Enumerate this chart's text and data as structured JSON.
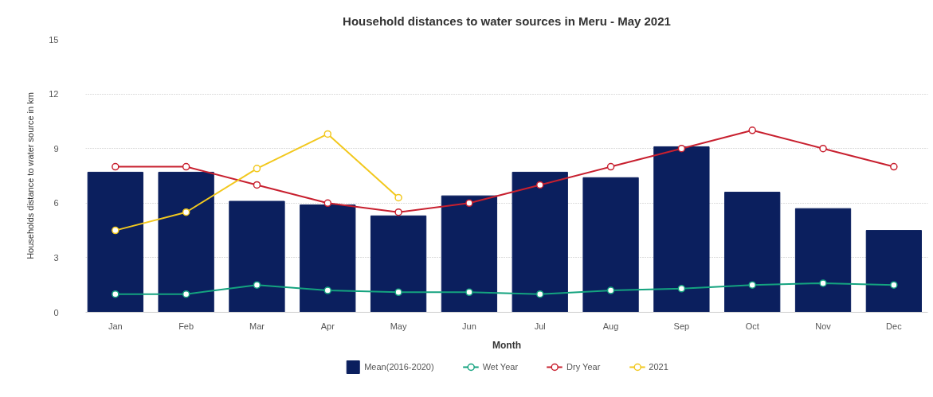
{
  "chart_data": {
    "type": "bar",
    "title": "Household distances to water sources in Meru - May 2021",
    "xlabel": "Month",
    "ylabel": "Households distance to water source in km",
    "categories": [
      "Jan",
      "Feb",
      "Mar",
      "Apr",
      "May",
      "Jun",
      "Jul",
      "Aug",
      "Sep",
      "Oct",
      "Nov",
      "Dec"
    ],
    "ylim": [
      0,
      15
    ],
    "yticks": [
      0,
      3,
      6,
      9,
      12,
      15
    ],
    "grid": "y",
    "legend": "bottom",
    "marker": "circle",
    "line_style": "solid",
    "series": [
      {
        "name": "Mean(2016-2020)",
        "color": "#0b1f5e",
        "values": [
          7.7,
          7.7,
          6.1,
          5.9,
          5.3,
          6.4,
          7.7,
          7.4,
          9.1,
          6.6,
          5.7,
          4.5
        ]
      },
      {
        "name": "Wet Year",
        "type": "line",
        "color": "#14a37f",
        "values": [
          1.0,
          1.0,
          1.5,
          1.2,
          1.1,
          1.1,
          1.0,
          1.2,
          1.3,
          1.5,
          1.6,
          1.5
        ]
      },
      {
        "name": "Dry Year",
        "type": "line",
        "color": "#c8202f",
        "values": [
          8,
          8,
          7,
          6,
          5.5,
          6,
          7,
          8,
          9,
          10,
          9,
          8
        ]
      },
      {
        "name": "2021",
        "type": "line",
        "color": "#f2c81e",
        "values": [
          4.5,
          5.5,
          7.9,
          9.8,
          6.3,
          null,
          null,
          null,
          null,
          null,
          null,
          null
        ]
      }
    ]
  }
}
